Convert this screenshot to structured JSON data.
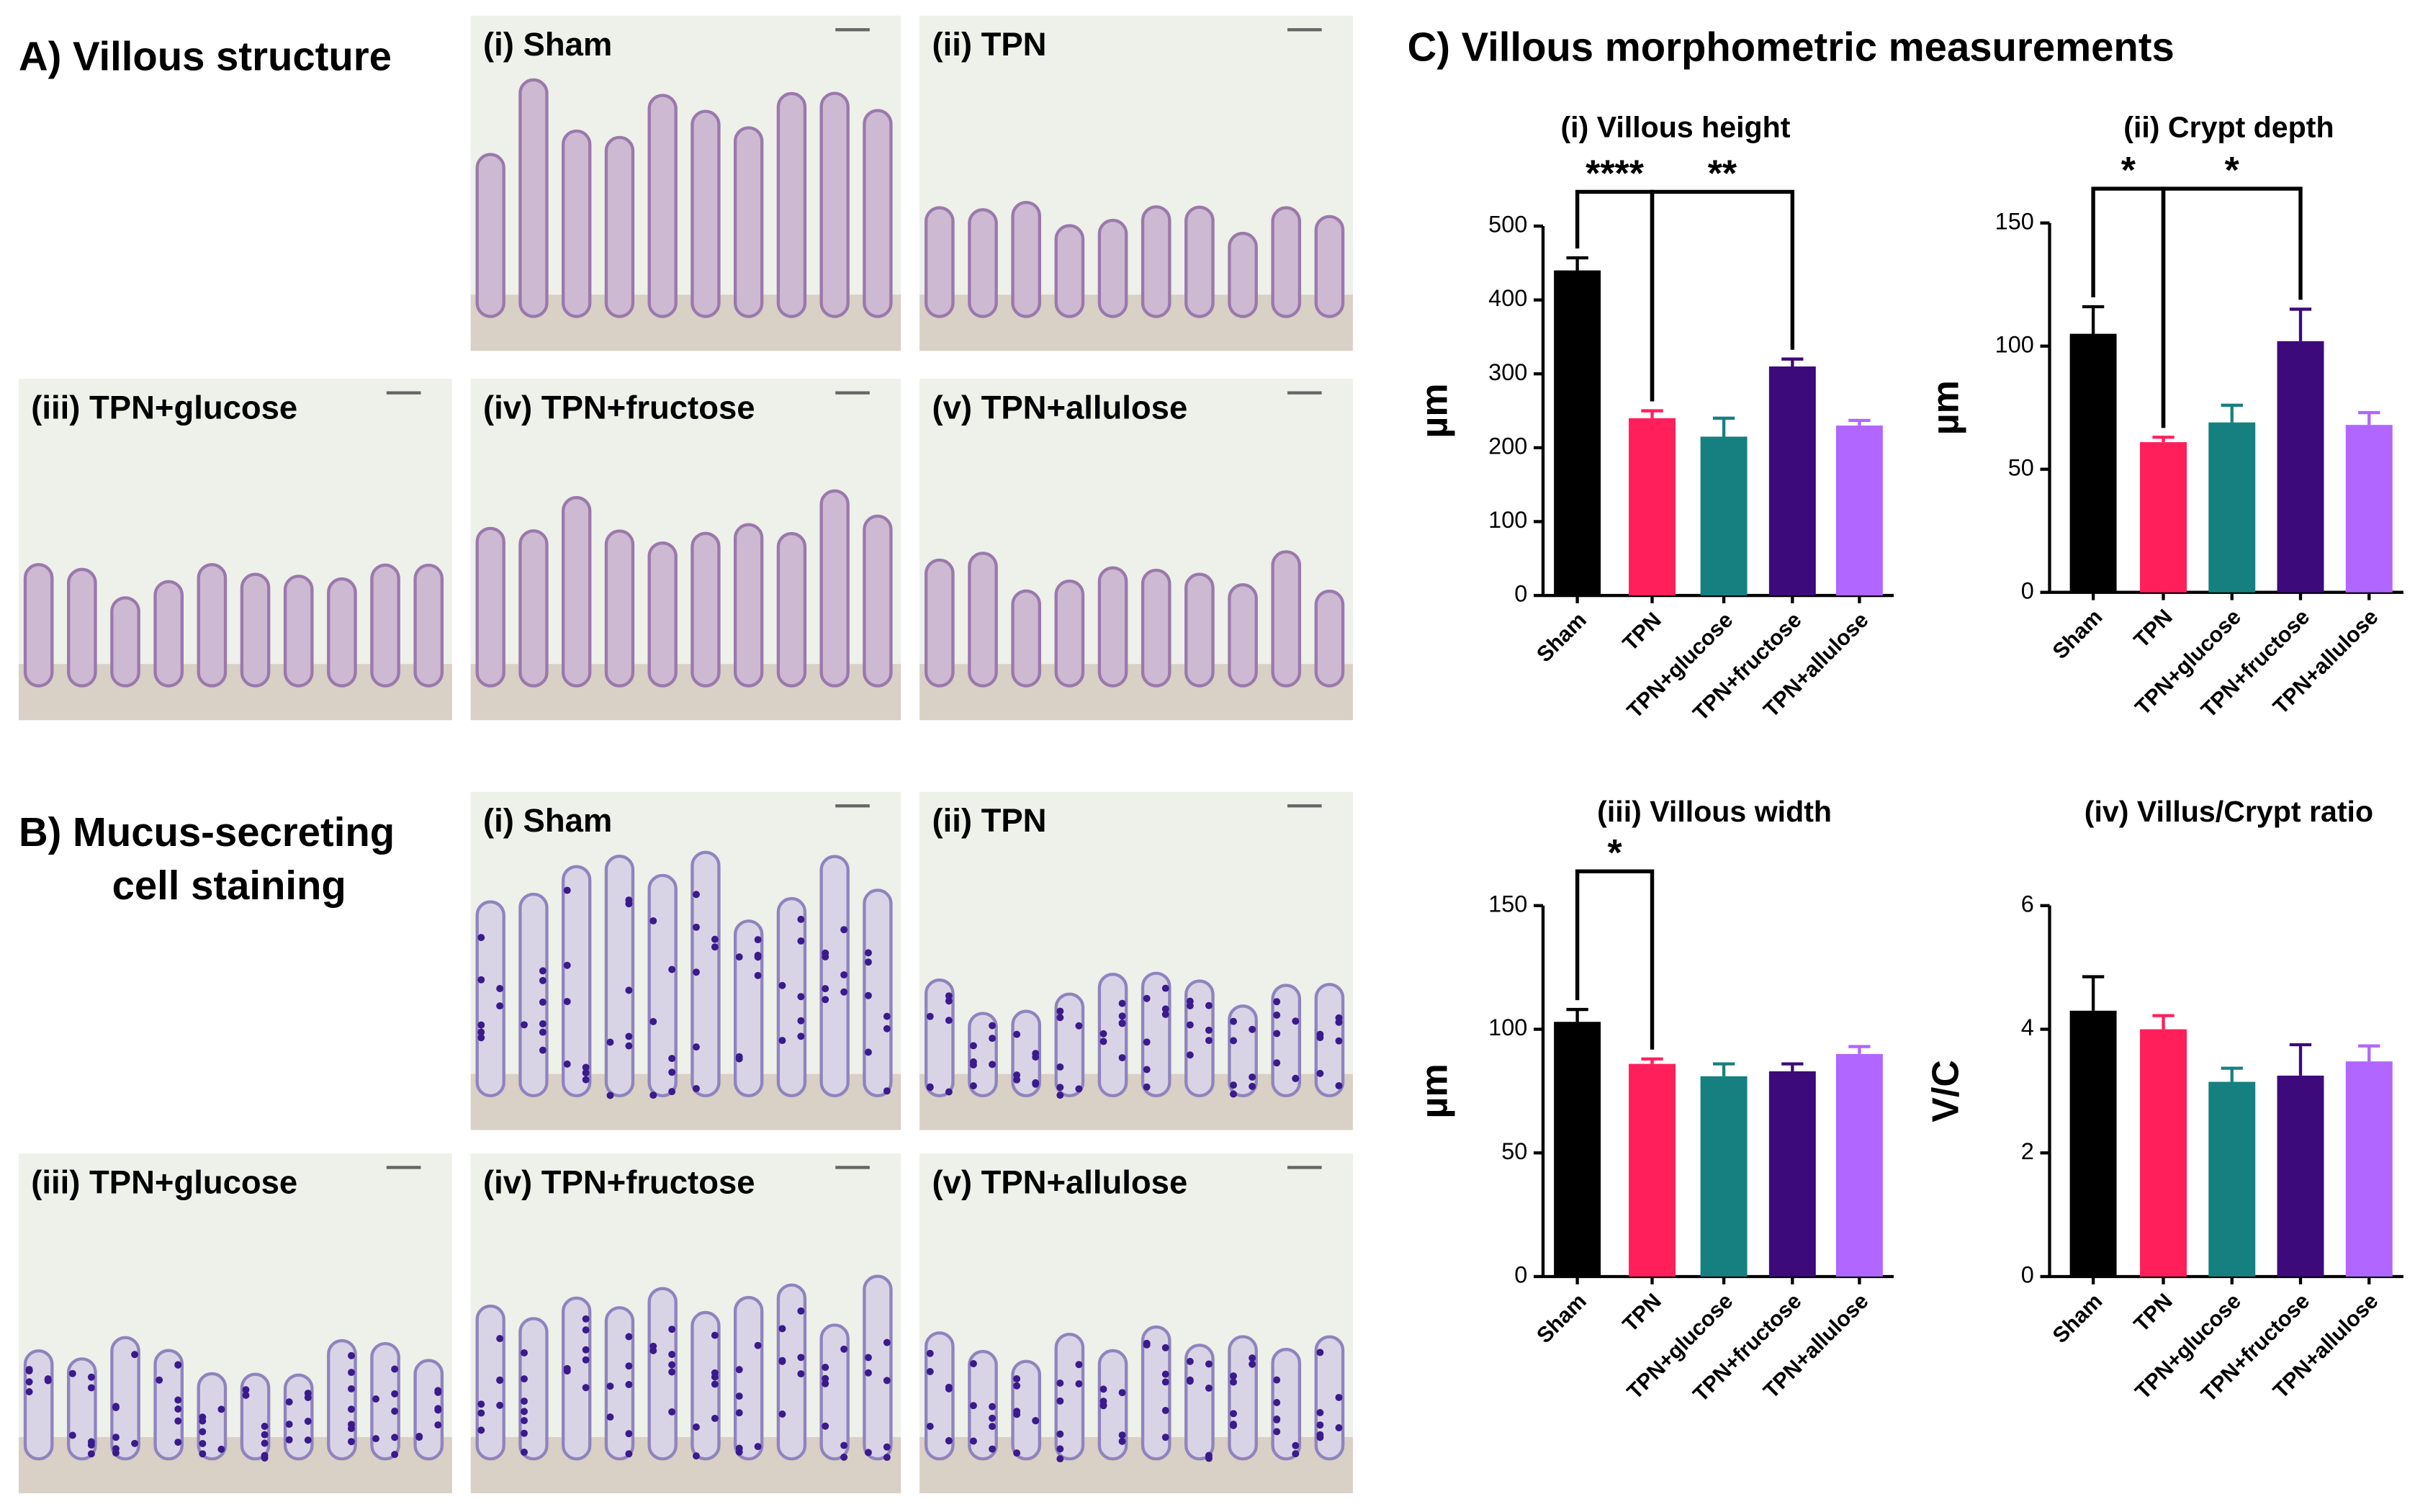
{
  "figure": {
    "panel_a": {
      "title": "A) Villous structure",
      "images": [
        "(i) Sham",
        "(ii) TPN",
        "(iii) TPN+glucose",
        "(iv) TPN+fructose",
        "(v) TPN+allulose"
      ]
    },
    "panel_b": {
      "title_lines": [
        "B) Mucus-secreting",
        "cell staining"
      ],
      "images": [
        "(i)  Sham",
        "(ii) TPN",
        "(iii) TPN+glucose",
        "(iv) TPN+fructose",
        "(v) TPN+allulose"
      ]
    },
    "panel_c": {
      "title": "C) Villous morphometric measurements"
    }
  },
  "chart_data": [
    {
      "type": "bar",
      "title": "(i) Villous height",
      "ylabel": "µm",
      "categories": [
        "Sham",
        "TPN",
        "TPN+glucose",
        "TPN+fructose",
        "TPN+allulose"
      ],
      "values": [
        440,
        240,
        215,
        310,
        230
      ],
      "errors": [
        17,
        10,
        25,
        10,
        7
      ],
      "colors": [
        "#000000",
        "#ff1f5b",
        "#168080",
        "#3c0a7a",
        "#b066ff"
      ],
      "ylim": [
        0,
        500
      ],
      "yticks": [
        0,
        100,
        200,
        300,
        400,
        500
      ],
      "annotations": [
        {
          "text": "****",
          "between": [
            "Sham",
            "TPN"
          ]
        },
        {
          "text": "**",
          "between": [
            "TPN",
            "TPN+fructose"
          ]
        }
      ]
    },
    {
      "type": "bar",
      "title": "(ii) Crypt depth",
      "ylabel": "µm",
      "categories": [
        "Sham",
        "TPN",
        "TPN+glucose",
        "TPN+fructose",
        "TPN+allulose"
      ],
      "values": [
        105,
        61,
        69,
        102,
        68
      ],
      "errors": [
        11,
        2,
        7,
        13,
        5
      ],
      "colors": [
        "#000000",
        "#ff1f5b",
        "#168080",
        "#3c0a7a",
        "#b066ff"
      ],
      "ylim": [
        0,
        150
      ],
      "yticks": [
        0,
        50,
        100,
        150
      ],
      "annotations": [
        {
          "text": "*",
          "between": [
            "Sham",
            "TPN"
          ]
        },
        {
          "text": "*",
          "between": [
            "TPN",
            "TPN+fructose"
          ]
        }
      ]
    },
    {
      "type": "bar",
      "title": "(iii) Villous width",
      "ylabel": "µm",
      "categories": [
        "Sham",
        "TPN",
        "TPN+glucose",
        "TPN+fructose",
        "TPN+allulose"
      ],
      "values": [
        103,
        86,
        81,
        83,
        90
      ],
      "errors": [
        5,
        2,
        5,
        3,
        3
      ],
      "colors": [
        "#000000",
        "#ff1f5b",
        "#168080",
        "#3c0a7a",
        "#b066ff"
      ],
      "ylim": [
        0,
        150
      ],
      "yticks": [
        0,
        50,
        100,
        150
      ],
      "annotations": [
        {
          "text": "*",
          "between": [
            "Sham",
            "TPN"
          ]
        }
      ]
    },
    {
      "type": "bar",
      "title": "(iv) Villus/Crypt ratio",
      "ylabel": "V/C",
      "categories": [
        "Sham",
        "TPN",
        "TPN+glucose",
        "TPN+fructose",
        "TPN+allulose"
      ],
      "values": [
        4.3,
        4.0,
        3.15,
        3.25,
        3.48
      ],
      "errors": [
        0.55,
        0.22,
        0.22,
        0.5,
        0.25
      ],
      "colors": [
        "#000000",
        "#ff1f5b",
        "#168080",
        "#3c0a7a",
        "#b066ff"
      ],
      "ylim": [
        0,
        6
      ],
      "yticks": [
        0,
        2,
        4,
        6
      ],
      "annotations": []
    }
  ]
}
